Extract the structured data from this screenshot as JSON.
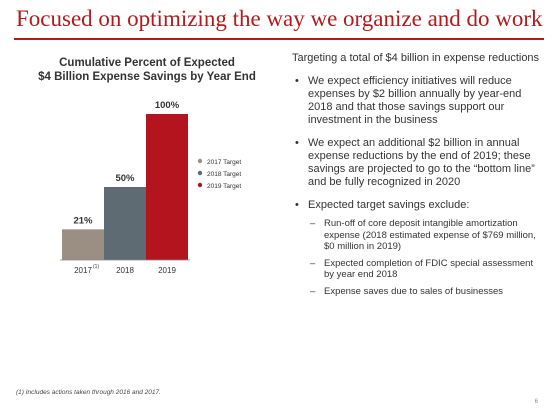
{
  "slide": {
    "title": "Focused on optimizing the way we organize and do work",
    "footnote": "(1) Includes actions taken through 2016 and 2017.",
    "page_number": "6"
  },
  "chart_data": {
    "type": "bar",
    "title_line1": "Cumulative Percent of Expected",
    "title_line2": "$4 Billion Expense Savings by Year End",
    "categories": [
      "2017",
      "2018",
      "2019"
    ],
    "category_superscripts": [
      "(1)",
      "",
      ""
    ],
    "values": [
      21,
      50,
      100
    ],
    "value_labels": [
      "21%",
      "50%",
      "100%"
    ],
    "colors": [
      "#9b8f83",
      "#5e6b73",
      "#b3141e"
    ],
    "ylim": [
      0,
      100
    ],
    "grid": false,
    "legend_position": "right",
    "legend": [
      {
        "label": "2017 Target",
        "color": "#9b8f83"
      },
      {
        "label": "2018 Target",
        "color": "#5e6b73"
      },
      {
        "label": "2019 Target",
        "color": "#b3141e"
      }
    ]
  },
  "right_column": {
    "intro": "Targeting a total of $4 billion in expense reductions",
    "bullets": [
      "We expect efficiency initiatives will reduce expenses by $2 billion annually by year-end 2018 and that those savings support our investment in the business",
      "We expect an additional $2 billion in annual expense reductions by the end of 2019; these savings are projected to go to the “bottom line” and be fully recognized in 2020",
      "Expected target savings exclude:"
    ],
    "sub_bullets": [
      "Run-off of core deposit intangible amortization expense (2018 estimated expense of $769 million, $0 million in 2019)",
      "Expected completion of FDIC special assessment by year end 2018",
      "Expense saves due to sales of businesses"
    ]
  }
}
